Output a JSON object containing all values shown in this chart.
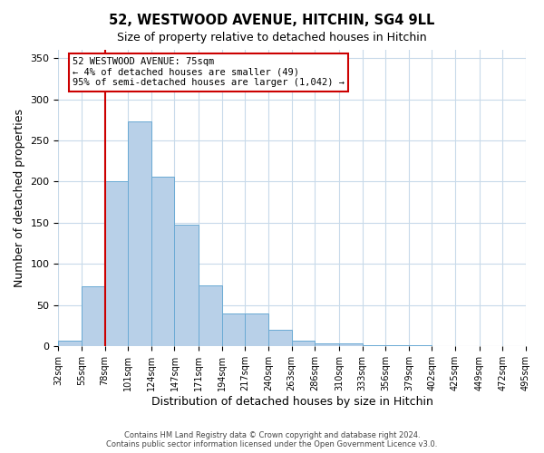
{
  "title": "52, WESTWOOD AVENUE, HITCHIN, SG4 9LL",
  "subtitle": "Size of property relative to detached houses in Hitchin",
  "xlabel": "Distribution of detached houses by size in Hitchin",
  "ylabel": "Number of detached properties",
  "bar_values": [
    7,
    73,
    201,
    273,
    206,
    148,
    74,
    40,
    40,
    20,
    7,
    4,
    4,
    1,
    1,
    2
  ],
  "bin_edges": [
    32,
    55,
    78,
    101,
    124,
    147,
    171,
    194,
    217,
    240,
    263,
    286,
    310,
    333,
    356,
    379,
    402,
    425,
    449,
    472,
    495
  ],
  "bin_labels": [
    "32sqm",
    "55sqm",
    "78sqm",
    "101sqm",
    "124sqm",
    "147sqm",
    "171sqm",
    "194sqm",
    "217sqm",
    "240sqm",
    "263sqm",
    "286sqm",
    "310sqm",
    "333sqm",
    "356sqm",
    "379sqm",
    "402sqm",
    "425sqm",
    "449sqm",
    "472sqm",
    "495sqm"
  ],
  "bar_color": "#b8d0e8",
  "bar_edge_color": "#6aaad4",
  "vline_x": 78,
  "vline_color": "#cc0000",
  "annotation_line1": "52 WESTWOOD AVENUE: 75sqm",
  "annotation_line2": "← 4% of detached houses are smaller (49)",
  "annotation_line3": "95% of semi-detached houses are larger (1,042) →",
  "annotation_box_color": "#ffffff",
  "annotation_box_edge": "#cc0000",
  "ylim": [
    0,
    360
  ],
  "yticks": [
    0,
    50,
    100,
    150,
    200,
    250,
    300,
    350
  ],
  "background_color": "#ffffff",
  "grid_color": "#c8daea",
  "footer_line1": "Contains HM Land Registry data © Crown copyright and database right 2024.",
  "footer_line2": "Contains public sector information licensed under the Open Government Licence v3.0."
}
